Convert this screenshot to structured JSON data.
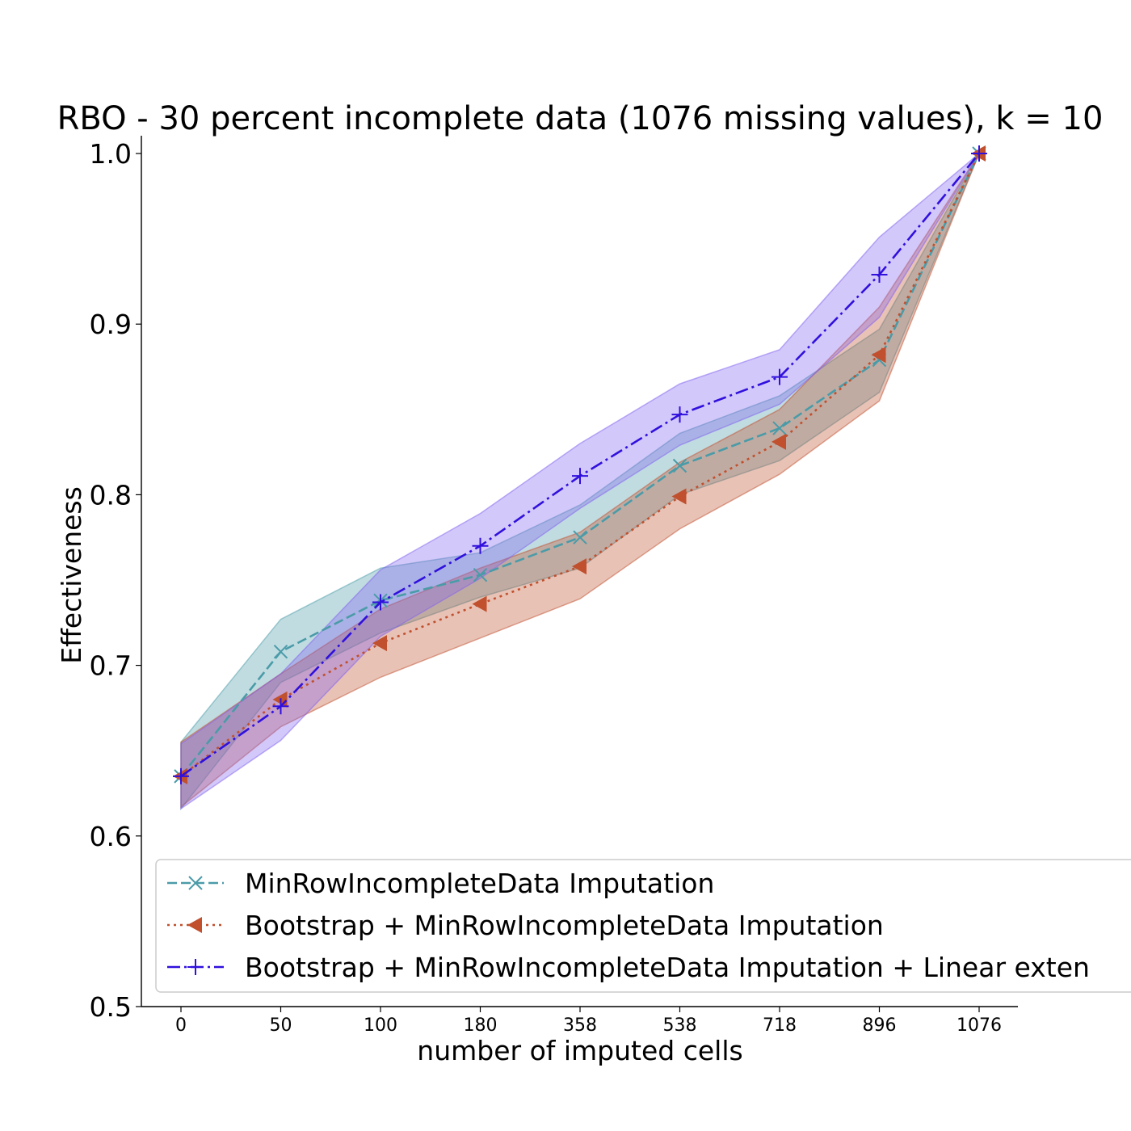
{
  "chart_data": {
    "type": "line",
    "title": "RBO - 30 percent incomplete data (1076 missing values), k = 10",
    "xlabel": "number of imputed cells",
    "ylabel": "Effectiveness",
    "categories": [
      "0",
      "50",
      "100",
      "180",
      "358",
      "538",
      "718",
      "896",
      "1076"
    ],
    "ylim": [
      0.5,
      1.0
    ],
    "yticks": [
      "0.5",
      "0.6",
      "0.7",
      "0.8",
      "0.9",
      "1.0"
    ],
    "grid": false,
    "legend_position": "bottom-center",
    "series": [
      {
        "name": "MinRowIncompleteData Imputation",
        "color": "#4a9ba8",
        "line_style": "dashed",
        "marker": "x",
        "values": [
          0.635,
          0.708,
          0.738,
          0.753,
          0.775,
          0.817,
          0.839,
          0.879,
          1.0
        ],
        "lower": [
          0.616,
          0.69,
          0.719,
          0.74,
          0.757,
          0.8,
          0.82,
          0.86,
          1.0
        ],
        "upper": [
          0.655,
          0.727,
          0.757,
          0.766,
          0.794,
          0.836,
          0.858,
          0.897,
          1.0
        ]
      },
      {
        "name": "Bootstrap + MinRowIncompleteData Imputation",
        "color": "#c0502e",
        "line_style": "dotted",
        "marker": "triangle-left",
        "values": [
          0.635,
          0.68,
          0.713,
          0.736,
          0.758,
          0.799,
          0.831,
          0.882,
          1.0
        ],
        "lower": [
          0.617,
          0.664,
          0.693,
          0.716,
          0.739,
          0.78,
          0.812,
          0.855,
          1.0
        ],
        "upper": [
          0.655,
          0.695,
          0.733,
          0.757,
          0.778,
          0.819,
          0.85,
          0.91,
          1.0
        ]
      },
      {
        "name": "Bootstrap + MinRowIncompleteData Imputation + Linear exten",
        "color": "#3010dd",
        "fill_color": "#8060f0",
        "line_style": "dashdot",
        "marker": "plus",
        "values": [
          0.635,
          0.676,
          0.737,
          0.77,
          0.811,
          0.847,
          0.869,
          0.929,
          1.0
        ],
        "lower": [
          0.616,
          0.656,
          0.717,
          0.751,
          0.792,
          0.829,
          0.853,
          0.904,
          1.0
        ],
        "upper": [
          0.654,
          0.695,
          0.756,
          0.789,
          0.83,
          0.865,
          0.885,
          0.951,
          1.0
        ]
      }
    ]
  }
}
